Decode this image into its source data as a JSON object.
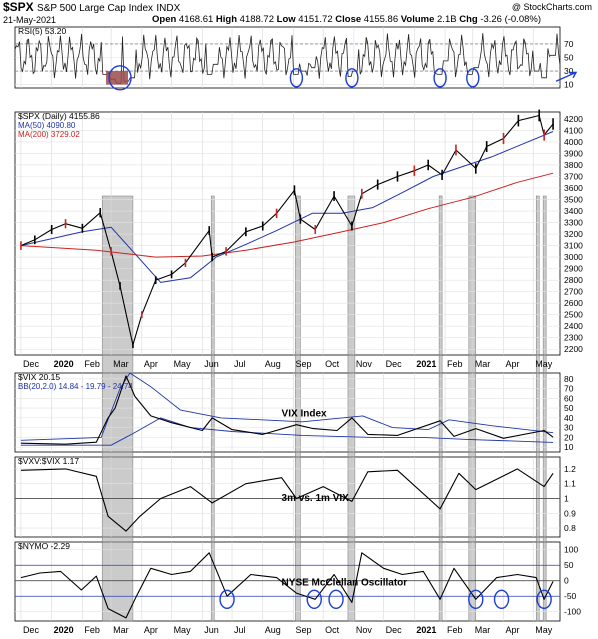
{
  "header": {
    "symbol": "$SPX",
    "name": "S&P 500 Large Cap Index",
    "exchange": "INDX",
    "credit": "@ StockCharts.com",
    "date": "21-May-2021",
    "open_label": "Open",
    "open": "4168.61",
    "high_label": "High",
    "high": "4188.72",
    "low_label": "Low",
    "low": "4151.72",
    "close_label": "Close",
    "close": "4155.86",
    "volume_label": "Volume",
    "volume": "2.1B",
    "chg_label": "Chg",
    "chg": "-3.26 (-0.08%)"
  },
  "colors": {
    "price": "#000000",
    "ma50": "#1f35a8",
    "ma200": "#cc2222",
    "rsi_fill": "#5c8a4a",
    "rsi_oversold_fill": "#9b4a4a",
    "highlight": "#a0a0a0",
    "annotation": "#1a3fd6"
  },
  "chart_data": [
    {
      "type": "line",
      "id": "rsi",
      "legend": "RSI(5) 53.20",
      "y_ticks": [
        70,
        50,
        30,
        10
      ],
      "overbought": 70,
      "oversold": 30,
      "ylim": [
        5,
        95
      ],
      "x": [
        "2020-02-24",
        "2020-03-02",
        "2020-03-09",
        "2020-03-16",
        "2020-03-23",
        "2020-06-08",
        "2020-06-15",
        "2020-09-04",
        "2020-09-11",
        "2020-09-21",
        "2020-10-28",
        "2020-11-02",
        "2021-01-27",
        "2021-02-01",
        "2021-02-26",
        "2021-03-04",
        "2021-05-04",
        "2021-05-12",
        "2021-05-21"
      ],
      "values": [
        25,
        18,
        12,
        15,
        20,
        25,
        40,
        25,
        30,
        35,
        22,
        30,
        25,
        45,
        25,
        35,
        30,
        20,
        53.2
      ]
    },
    {
      "type": "line",
      "id": "price",
      "legend": "$SPX (Daily) 4155.86",
      "ma_legends": [
        "MA(50) 4090.80",
        "MA(200) 3729.02"
      ],
      "y_ticks": [
        4200,
        4100,
        4000,
        3900,
        3800,
        3700,
        3600,
        3500,
        3400,
        3300,
        3200,
        3100,
        3000,
        2900,
        2800,
        2700,
        2600,
        2500,
        2400,
        2300,
        2200
      ],
      "ylim": [
        2150,
        4260
      ],
      "x": [
        "2019-12-01",
        "2019-12-15",
        "2020-01-01",
        "2020-01-15",
        "2020-02-01",
        "2020-02-19",
        "2020-03-01",
        "2020-03-10",
        "2020-03-23",
        "2020-04-01",
        "2020-04-15",
        "2020-05-01",
        "2020-05-15",
        "2020-06-08",
        "2020-06-11",
        "2020-06-25",
        "2020-07-15",
        "2020-08-01",
        "2020-08-15",
        "2020-09-02",
        "2020-09-08",
        "2020-09-23",
        "2020-10-12",
        "2020-10-30",
        "2020-11-09",
        "2020-11-25",
        "2020-12-15",
        "2021-01-01",
        "2021-01-15",
        "2021-01-29",
        "2021-02-12",
        "2021-03-04",
        "2021-03-15",
        "2021-04-01",
        "2021-04-16",
        "2021-05-07",
        "2021-05-12",
        "2021-05-21"
      ],
      "values": [
        3100,
        3150,
        3240,
        3290,
        3250,
        3386,
        3050,
        2750,
        2237,
        2500,
        2800,
        2850,
        2950,
        3230,
        3000,
        3050,
        3220,
        3270,
        3380,
        3580,
        3330,
        3240,
        3530,
        3270,
        3550,
        3630,
        3700,
        3750,
        3800,
        3714,
        3930,
        3770,
        3960,
        4030,
        4185,
        4230,
        4060,
        4155.86
      ],
      "ma50": {
        "x": [
          "2019-12-01",
          "2020-02-01",
          "2020-03-01",
          "2020-03-23",
          "2020-04-20",
          "2020-05-20",
          "2020-06-15",
          "2020-07-15",
          "2020-08-15",
          "2020-09-20",
          "2020-10-20",
          "2020-11-20",
          "2020-12-20",
          "2021-01-20",
          "2021-02-20",
          "2021-03-20",
          "2021-04-20",
          "2021-05-21"
        ],
        "values": [
          3100,
          3220,
          3260,
          3050,
          2780,
          2820,
          3000,
          3110,
          3230,
          3380,
          3380,
          3430,
          3560,
          3700,
          3790,
          3870,
          3980,
          4090.8
        ]
      },
      "ma200": {
        "x": [
          "2019-12-01",
          "2020-02-15",
          "2020-04-15",
          "2020-06-01",
          "2020-07-15",
          "2020-09-01",
          "2020-10-15",
          "2020-12-01",
          "2021-01-15",
          "2021-03-01",
          "2021-04-15",
          "2021-05-21"
        ],
        "values": [
          3100,
          3060,
          3000,
          3010,
          3060,
          3130,
          3210,
          3300,
          3420,
          3520,
          3650,
          3729.02
        ]
      }
    },
    {
      "type": "line",
      "id": "vix",
      "legend": "$VIX 20.15",
      "bb_legend": "BB(20,2.0) 14.84 - 19.79 - 24.74",
      "title": "VIX Index",
      "y_ticks": [
        80,
        70,
        60,
        50,
        40,
        30,
        20,
        10
      ],
      "ylim": [
        5,
        86
      ],
      "x": [
        "2019-12-01",
        "2020-01-15",
        "2020-02-15",
        "2020-02-27",
        "2020-03-05",
        "2020-03-16",
        "2020-03-25",
        "2020-04-10",
        "2020-05-01",
        "2020-06-01",
        "2020-06-11",
        "2020-07-01",
        "2020-08-01",
        "2020-09-04",
        "2020-09-21",
        "2020-10-15",
        "2020-10-30",
        "2020-11-15",
        "2020-12-15",
        "2021-01-27",
        "2021-02-10",
        "2021-03-04",
        "2021-04-01",
        "2021-05-12",
        "2021-05-21"
      ],
      "values": [
        14,
        13,
        15,
        40,
        50,
        83,
        62,
        42,
        35,
        27,
        40,
        28,
        23,
        33,
        29,
        27,
        40,
        23,
        22,
        37,
        21,
        29,
        19,
        27,
        20.15
      ],
      "bb_upper": {
        "x": [
          "2019-12-01",
          "2020-02-20",
          "2020-03-10",
          "2020-03-20",
          "2020-04-10",
          "2020-05-10",
          "2020-06-20",
          "2020-09-10",
          "2020-10-20",
          "2020-11-10",
          "2020-12-10",
          "2021-01-15",
          "2021-02-05",
          "2021-03-20",
          "2021-05-21"
        ],
        "values": [
          17,
          20,
          70,
          86,
          72,
          48,
          40,
          36,
          40,
          42,
          30,
          28,
          38,
          32,
          24.74
        ]
      },
      "bb_lower": {
        "x": [
          "2019-12-01",
          "2020-03-01",
          "2020-03-25",
          "2020-04-20",
          "2020-05-20",
          "2020-07-01",
          "2020-09-10",
          "2020-11-20",
          "2021-01-10",
          "2021-02-20",
          "2021-05-21"
        ],
        "values": [
          12,
          12,
          25,
          40,
          30,
          26,
          22,
          20,
          20,
          18,
          14.84
        ]
      }
    },
    {
      "type": "line",
      "id": "vxv_vix",
      "legend": "$VXV:$VIX 1.17",
      "title": "3m vs. 1m VIX",
      "y_ticks": [
        1.2,
        1.1,
        1.0,
        0.9,
        0.8
      ],
      "reference": 1.0,
      "ylim": [
        0.74,
        1.28
      ],
      "x": [
        "2019-12-01",
        "2020-01-15",
        "2020-02-15",
        "2020-02-27",
        "2020-03-16",
        "2020-03-30",
        "2020-04-20",
        "2020-05-20",
        "2020-06-11",
        "2020-07-15",
        "2020-08-20",
        "2020-09-04",
        "2020-10-01",
        "2020-10-30",
        "2020-11-15",
        "2020-12-15",
        "2021-01-27",
        "2021-02-15",
        "2021-03-04",
        "2021-04-15",
        "2021-05-12",
        "2021-05-21"
      ],
      "values": [
        1.19,
        1.2,
        1.15,
        0.88,
        0.78,
        0.88,
        1.0,
        1.08,
        0.97,
        1.1,
        1.14,
        1.0,
        1.08,
        0.98,
        1.18,
        1.19,
        0.93,
        1.17,
        1.06,
        1.2,
        1.08,
        1.17
      ]
    },
    {
      "type": "line",
      "id": "nymo",
      "legend": "$NYMO -2.29",
      "title": "NYSE McClellan Oscillator",
      "y_ticks": [
        100,
        50,
        0,
        -50,
        -100
      ],
      "reference": 0,
      "ylim": [
        -130,
        125
      ],
      "x": [
        "2019-12-01",
        "2019-12-20",
        "2020-01-10",
        "2020-01-31",
        "2020-02-15",
        "2020-02-27",
        "2020-03-16",
        "2020-03-25",
        "2020-04-10",
        "2020-05-01",
        "2020-05-20",
        "2020-06-08",
        "2020-06-26",
        "2020-07-20",
        "2020-08-15",
        "2020-09-04",
        "2020-09-23",
        "2020-10-12",
        "2020-10-30",
        "2020-11-09",
        "2020-12-01",
        "2020-12-20",
        "2021-01-10",
        "2021-01-27",
        "2021-02-10",
        "2021-03-04",
        "2021-03-25",
        "2021-04-15",
        "2021-05-04",
        "2021-05-12",
        "2021-05-21"
      ],
      "values": [
        10,
        25,
        30,
        -30,
        15,
        -90,
        -120,
        -60,
        40,
        20,
        30,
        90,
        -50,
        20,
        10,
        -40,
        -60,
        20,
        -70,
        90,
        40,
        20,
        30,
        -60,
        40,
        -60,
        10,
        20,
        10,
        -60,
        -2.29
      ]
    }
  ],
  "x_axis": {
    "labels": [
      "Dec",
      "2020",
      "Feb",
      "Mar",
      "Apr",
      "May",
      "Jun",
      "Jul",
      "Aug",
      "Sep",
      "Oct",
      "Nov",
      "Dec",
      "2021",
      "Feb",
      "Mar",
      "Apr",
      "May"
    ],
    "dates": [
      "2019-12-01",
      "2020-01-01",
      "2020-02-01",
      "2020-03-01",
      "2020-04-01",
      "2020-05-01",
      "2020-06-01",
      "2020-07-01",
      "2020-08-01",
      "2020-09-01",
      "2020-10-01",
      "2020-11-01",
      "2020-12-01",
      "2021-01-01",
      "2021-02-01",
      "2021-03-01",
      "2021-04-01",
      "2021-05-01"
    ],
    "range": [
      "2019-11-25",
      "2021-05-28"
    ]
  },
  "highlights": {
    "dates": [
      [
        "2020-02-21",
        "2020-03-23"
      ],
      [
        "2020-06-10",
        "2020-06-12"
      ],
      [
        "2020-09-03",
        "2020-09-08"
      ],
      [
        "2020-10-26",
        "2020-11-02"
      ],
      [
        "2021-01-26",
        "2021-01-29"
      ],
      [
        "2021-02-25",
        "2021-03-04"
      ],
      [
        "2021-05-04",
        "2021-05-06"
      ],
      [
        "2021-05-11",
        "2021-05-13"
      ]
    ]
  },
  "annotations": {
    "rsi_ellipses": [
      "2020-03-10",
      "2020-09-04",
      "2020-10-30",
      "2021-01-27",
      "2021-03-01"
    ],
    "nymo_ellipses": [
      "2020-06-26",
      "2020-09-22",
      "2020-10-14",
      "2021-03-04",
      "2021-03-30",
      "2021-05-12"
    ]
  }
}
